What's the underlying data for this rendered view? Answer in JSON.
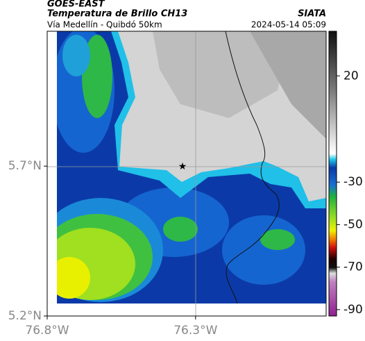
{
  "header": {
    "title": "GOES-EAST",
    "subtitle": "Temperatura de Brillo CH13",
    "region": "Vía Medellín - Quibdó 50km",
    "source": "SIATA",
    "datetime": "2024-05-14 05:09"
  },
  "map": {
    "latlim": [
      5.2,
      6.15
    ],
    "lonlim": [
      -76.8,
      -75.86
    ],
    "lat_ticks": [
      {
        "value": 5.7,
        "label": "5.7°N"
      },
      {
        "value": 5.2,
        "label": "5.2°N"
      }
    ],
    "lon_ticks": [
      {
        "value": -76.8,
        "label": "76.8°W"
      },
      {
        "value": -76.3,
        "label": "76.3°W"
      }
    ]
  },
  "colorbar": {
    "lim": [
      -93,
      41
    ],
    "ticks": [
      20,
      -30,
      -50,
      -70,
      -90
    ]
  }
}
